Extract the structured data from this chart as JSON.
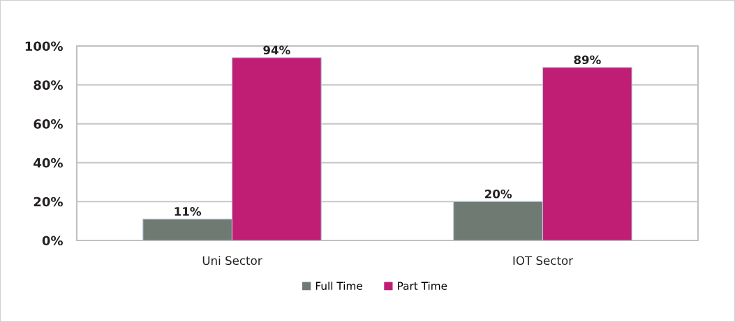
{
  "chart_data": {
    "type": "bar",
    "categories": [
      "Uni Sector",
      "IOT Sector"
    ],
    "series": [
      {
        "name": "Full Time",
        "color": "#6e7a72",
        "values": [
          11,
          20
        ],
        "value_labels": [
          "11%",
          "20%"
        ]
      },
      {
        "name": "Part Time",
        "color": "#c01d74",
        "values": [
          94,
          89
        ],
        "value_labels": [
          "94%",
          "89%"
        ]
      }
    ],
    "ylim": [
      0,
      100
    ],
    "yticks": [
      {
        "value": 0,
        "label": "0%"
      },
      {
        "value": 20,
        "label": "20%"
      },
      {
        "value": 40,
        "label": "40%"
      },
      {
        "value": 60,
        "label": "60%"
      },
      {
        "value": 80,
        "label": "80%"
      },
      {
        "value": 100,
        "label": "100%"
      }
    ],
    "grid": "y",
    "legend": "bottom"
  }
}
